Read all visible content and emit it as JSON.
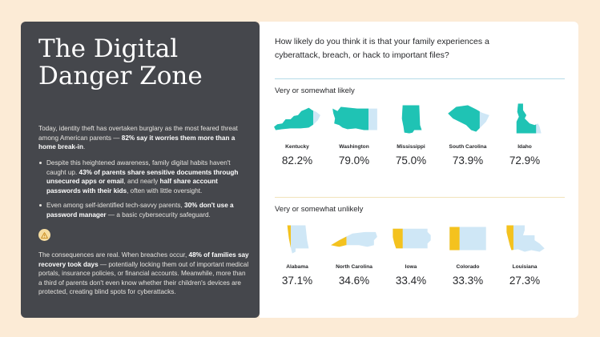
{
  "left": {
    "title": "The Digital Danger Zone",
    "intro": [
      {
        "t": "Today, identity theft has overtaken burglary as the most feared threat among American parents — ",
        "b": false
      },
      {
        "t": "82% say it worries them more than a home break-in",
        "b": true
      },
      {
        "t": ".",
        "b": false
      }
    ],
    "bullets": [
      [
        {
          "t": "Despite this heightened awareness, family digital habits haven't caught up. ",
          "b": false
        },
        {
          "t": "43% of parents share sensitive documents through unsecured apps or email",
          "b": true
        },
        {
          "t": ", and nearly ",
          "b": false
        },
        {
          "t": "half share account passwords with their kids",
          "b": true
        },
        {
          "t": ", often with little oversight.",
          "b": false
        }
      ],
      [
        {
          "t": "Even among self-identified tech-savvy parents, ",
          "b": false
        },
        {
          "t": "30% don't use a password manager",
          "b": true
        },
        {
          "t": " — a basic cybersecurity safeguard.",
          "b": false
        }
      ]
    ],
    "badge_icon": "warning-icon",
    "outro": [
      {
        "t": "The consequences are real. When breaches occur, ",
        "b": false
      },
      {
        "t": "48% of families say recovery took days",
        "b": true
      },
      {
        "t": " — potentially locking them out of important medical portals, insurance policies, or financial accounts. Meanwhile, more than a third of parents don't even know whether their children's devices are protected, creating blind spots for cyberattacks.",
        "b": false
      }
    ]
  },
  "right": {
    "question": "How likely do you think it is that your family experiences a cyberattack, breach, or hack to important files?"
  },
  "colors": {
    "likely_fill": "#1fc3b4",
    "likely_rest": "#cfe7f6",
    "unlikely_fill": "#f4c21e",
    "unlikely_rest": "#cfe7f6"
  },
  "chart_data": {
    "type": "bar",
    "unit": "%",
    "groups": [
      {
        "label": "Very or somewhat likely",
        "states": [
          {
            "name": "Kentucky",
            "value": 82.2,
            "display": "82.2%"
          },
          {
            "name": "Washington",
            "value": 79.0,
            "display": "79.0%"
          },
          {
            "name": "Mississippi",
            "value": 75.0,
            "display": "75.0%"
          },
          {
            "name": "South Carolina",
            "value": 73.9,
            "display": "73.9%"
          },
          {
            "name": "Idaho",
            "value": 72.9,
            "display": "72.9%"
          }
        ]
      },
      {
        "label": "Very or somewhat unlikely",
        "states": [
          {
            "name": "Alabama",
            "value": 37.1,
            "display": "37.1%"
          },
          {
            "name": "North Carolina",
            "value": 34.6,
            "display": "34.6%"
          },
          {
            "name": "Iowa",
            "value": 33.4,
            "display": "33.4%"
          },
          {
            "name": "Colorado",
            "value": 33.3,
            "display": "33.3%"
          },
          {
            "name": "Louisiana",
            "value": 27.3,
            "display": "27.3%"
          }
        ]
      }
    ]
  }
}
